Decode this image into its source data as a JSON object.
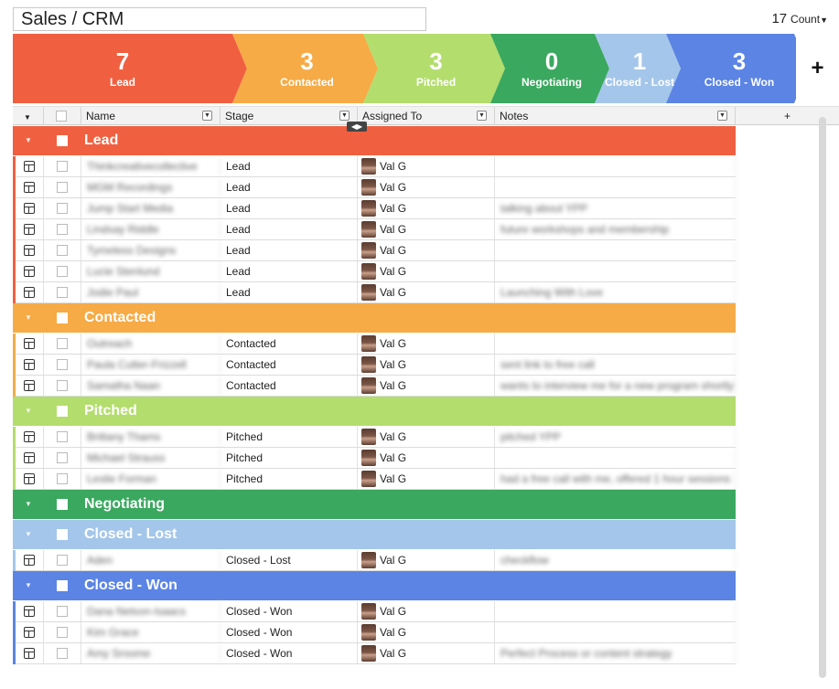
{
  "header": {
    "title": "Sales / CRM",
    "count_value": "17",
    "count_label": "Count"
  },
  "funnel": {
    "stages": [
      {
        "count": "7",
        "label": "Lead",
        "color": "#f06040"
      },
      {
        "count": "3",
        "label": "Contacted",
        "color": "#f6ab46"
      },
      {
        "count": "3",
        "label": "Pitched",
        "color": "#b3dd6d"
      },
      {
        "count": "0",
        "label": "Negotiating",
        "color": "#3aa85f"
      },
      {
        "count": "1",
        "label": "Closed - Lost",
        "color": "#a4c6ea"
      },
      {
        "count": "3",
        "label": "Closed - Won",
        "color": "#5b84e4"
      }
    ],
    "add_symbol": "+"
  },
  "columns": {
    "name": "Name",
    "stage": "Stage",
    "assigned": "Assigned To",
    "notes": "Notes",
    "add": "+"
  },
  "groups": [
    {
      "label": "Lead",
      "color": "#f06040",
      "rows": [
        {
          "name": "Thinkcreativecollective",
          "stage": "Lead",
          "assigned": "Val G",
          "notes": ""
        },
        {
          "name": "MGM Recordings",
          "stage": "Lead",
          "assigned": "Val G",
          "notes": ""
        },
        {
          "name": "Jump Start Media",
          "stage": "Lead",
          "assigned": "Val G",
          "notes": "talking about YPP"
        },
        {
          "name": "Lindsay Riddle",
          "stage": "Lead",
          "assigned": "Val G",
          "notes": "future workshops and membership"
        },
        {
          "name": "Tymeless Designs",
          "stage": "Lead",
          "assigned": "Val G",
          "notes": ""
        },
        {
          "name": "Lucie Stenlund",
          "stage": "Lead",
          "assigned": "Val G",
          "notes": ""
        },
        {
          "name": "Jodie Paul",
          "stage": "Lead",
          "assigned": "Val G",
          "notes": "Launching With Love"
        }
      ]
    },
    {
      "label": "Contacted",
      "color": "#f6ab46",
      "rows": [
        {
          "name": "Outreach",
          "stage": "Contacted",
          "assigned": "Val G",
          "notes": ""
        },
        {
          "name": "Paula Cutter-Frizzell",
          "stage": "Contacted",
          "assigned": "Val G",
          "notes": "sent link to free call"
        },
        {
          "name": "Samatha Naan",
          "stage": "Contacted",
          "assigned": "Val G",
          "notes": "wants to interview me for a new program shortly"
        }
      ]
    },
    {
      "label": "Pitched",
      "color": "#b3dd6d",
      "rows": [
        {
          "name": "Brittany Thams",
          "stage": "Pitched",
          "assigned": "Val G",
          "notes": "pitched YPP"
        },
        {
          "name": "Michael Strauss",
          "stage": "Pitched",
          "assigned": "Val G",
          "notes": ""
        },
        {
          "name": "Leslie Forman",
          "stage": "Pitched",
          "assigned": "Val G",
          "notes": "had a free call with me, offered 1 hour sessions"
        }
      ]
    },
    {
      "label": "Negotiating",
      "color": "#3aa85f",
      "rows": []
    },
    {
      "label": "Closed - Lost",
      "color": "#a4c6ea",
      "rows": [
        {
          "name": "Aden",
          "stage": "Closed - Lost",
          "assigned": "Val G",
          "notes": "checkflow"
        }
      ]
    },
    {
      "label": "Closed - Won",
      "color": "#5b84e4",
      "rows": [
        {
          "name": "Dana Nelson-Isaacs",
          "stage": "Closed - Won",
          "assigned": "Val G",
          "notes": ""
        },
        {
          "name": "Kim Grace",
          "stage": "Closed - Won",
          "assigned": "Val G",
          "notes": ""
        },
        {
          "name": "Amy Sroome",
          "stage": "Closed - Won",
          "assigned": "Val G",
          "notes": "Perfect Process or content strategy"
        }
      ]
    }
  ]
}
